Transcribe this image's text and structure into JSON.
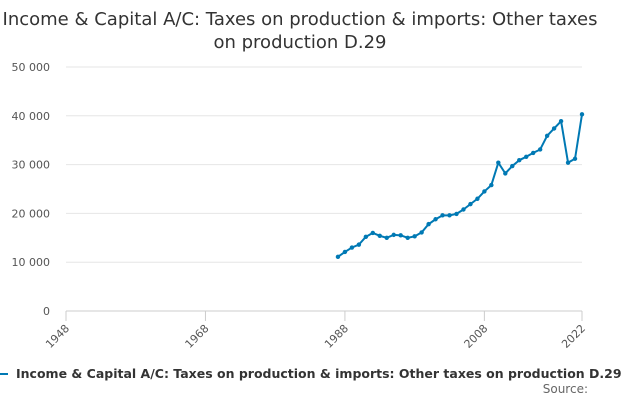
{
  "title": "Income & Capital A/C: Taxes on production & imports: Other taxes on production D.29",
  "legend": {
    "label": "Income & Capital A/C: Taxes on production & imports: Other taxes on production D.29"
  },
  "source_label": "Source:",
  "colors": {
    "series": "#0079b4",
    "grid": "#e6e6e6",
    "axis": "#cccccc",
    "text": "#333333"
  },
  "chart_data": {
    "type": "line",
    "title": "Income & Capital A/C: Taxes on production & imports: Other taxes on production D.29",
    "xlabel": "",
    "ylabel": "",
    "xlim": [
      1948,
      2022
    ],
    "ylim": [
      0,
      50000
    ],
    "x_ticks": [
      "1948",
      "1968",
      "1988",
      "2008",
      "2022"
    ],
    "y_ticks": [
      "0",
      "10 000",
      "20 000",
      "30 000",
      "40 000",
      "50 000"
    ],
    "grid": true,
    "legend_position": "bottom",
    "series": [
      {
        "name": "Income & Capital A/C: Taxes on production & imports: Other taxes on production D.29",
        "x": [
          1987,
          1988,
          1989,
          1990,
          1991,
          1992,
          1993,
          1994,
          1995,
          1996,
          1997,
          1998,
          1999,
          2000,
          2001,
          2002,
          2003,
          2004,
          2005,
          2006,
          2007,
          2008,
          2009,
          2010,
          2011,
          2012,
          2013,
          2014,
          2015,
          2016,
          2017,
          2018,
          2019,
          2020,
          2021,
          2022
        ],
        "y": [
          11100,
          12100,
          13000,
          13600,
          15200,
          16000,
          15400,
          15000,
          15600,
          15500,
          15000,
          15300,
          16100,
          17800,
          18800,
          19600,
          19600,
          19900,
          20800,
          21900,
          23000,
          24500,
          25800,
          30400,
          28200,
          29700,
          30900,
          31600,
          32400,
          33100,
          35900,
          37400,
          38900,
          30400,
          31200,
          40300
        ]
      }
    ]
  }
}
